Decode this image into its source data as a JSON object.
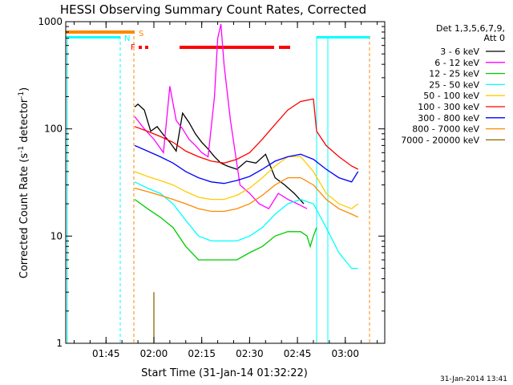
{
  "chart_data": {
    "type": "line",
    "title": "HESSI Observing Summary Count Rates, Corrected",
    "xlabel": "Start Time (31-Jan-14 01:32:22)",
    "ylabel": "Corrected Count Rate (s⁻¹ detector⁻¹)",
    "ylabel_parts": {
      "main": "Corrected Count Rate (s",
      "exp1": "-1",
      "mid": " detector",
      "exp2": "-1",
      "end": ")"
    },
    "x_range": [
      "01:32:22",
      "03:12:22"
    ],
    "y_scale": "log",
    "y_range": [
      1,
      1000
    ],
    "x_ticks": [
      "01:45",
      "02:00",
      "02:15",
      "02:30",
      "02:45",
      "03:00"
    ],
    "y_ticks": [
      "1",
      "10",
      "100",
      "1000"
    ],
    "legend_header": [
      "Det 1,3,5,6,7,9,",
      "Att 0"
    ],
    "legend_position": "right",
    "flag_labels": {
      "S": "S",
      "N": "N",
      "F": "F"
    },
    "footer_date": "31-Jan-2014 13:41",
    "series": [
      {
        "name": "3 - 6 keV",
        "color": "#000000",
        "t": [
          "01:54",
          "01:55",
          "01:57",
          "01:59",
          "02:01",
          "02:03",
          "02:05",
          "02:07",
          "02:09",
          "02:11",
          "02:13",
          "02:15",
          "02:17",
          "02:19",
          "02:21",
          "02:23",
          "02:26",
          "02:29",
          "02:32",
          "02:35",
          "02:38",
          "02:41",
          "02:44",
          "02:47"
        ],
        "values": [
          160,
          170,
          150,
          95,
          105,
          88,
          75,
          62,
          140,
          115,
          90,
          75,
          65,
          55,
          48,
          45,
          42,
          50,
          48,
          58,
          35,
          30,
          25,
          20
        ]
      },
      {
        "name": "6 - 12 keV",
        "color": "#ff00ff",
        "t": [
          "01:54",
          "01:57",
          "02:00",
          "02:03",
          "02:05",
          "02:07",
          "02:09",
          "02:11",
          "02:13",
          "02:15",
          "02:17",
          "02:19",
          "02:20",
          "02:21",
          "02:22",
          "02:24",
          "02:27",
          "02:30",
          "02:33",
          "02:36",
          "02:39",
          "02:42",
          "02:45",
          "02:48"
        ],
        "values": [
          130,
          100,
          80,
          60,
          250,
          120,
          100,
          80,
          70,
          60,
          55,
          200,
          700,
          950,
          400,
          120,
          30,
          25,
          20,
          18,
          25,
          22,
          20,
          18
        ]
      },
      {
        "name": "12 - 25 keV",
        "color": "#00cc00",
        "t": [
          "01:54",
          "01:58",
          "02:02",
          "02:06",
          "02:10",
          "02:14",
          "02:18",
          "02:22",
          "02:26",
          "02:30",
          "02:34",
          "02:38",
          "02:42",
          "02:46",
          "02:48",
          "02:49",
          "02:50",
          "02:51"
        ],
        "values": [
          22,
          18,
          15,
          12,
          8,
          6,
          6,
          6,
          6,
          7,
          8,
          10,
          11,
          11,
          10,
          8,
          10,
          12
        ]
      },
      {
        "name": "25 - 50 keV",
        "color": "#00ffff",
        "t": [
          "01:54",
          "01:58",
          "02:02",
          "02:06",
          "02:10",
          "02:14",
          "02:18",
          "02:22",
          "02:26",
          "02:30",
          "02:34",
          "02:38",
          "02:42",
          "02:46",
          "02:50",
          "02:54",
          "02:58",
          "03:02",
          "03:04"
        ],
        "values": [
          32,
          28,
          25,
          20,
          14,
          10,
          9,
          9,
          9,
          10,
          12,
          16,
          20,
          22,
          20,
          12,
          7,
          5,
          5
        ]
      },
      {
        "name": "50 - 100 keV",
        "color": "#ffcc00",
        "t": [
          "01:54",
          "01:58",
          "02:02",
          "02:06",
          "02:10",
          "02:14",
          "02:18",
          "02:22",
          "02:26",
          "02:30",
          "02:34",
          "02:38",
          "02:42",
          "02:46",
          "02:50",
          "02:54",
          "02:58",
          "03:02",
          "03:04"
        ],
        "values": [
          40,
          36,
          33,
          30,
          26,
          23,
          22,
          22,
          24,
          28,
          35,
          45,
          55,
          55,
          40,
          25,
          20,
          18,
          20
        ]
      },
      {
        "name": "100 - 300 keV",
        "color": "#ff0000",
        "t": [
          "01:54",
          "01:58",
          "02:02",
          "02:06",
          "02:10",
          "02:14",
          "02:18",
          "02:22",
          "02:26",
          "02:30",
          "02:34",
          "02:38",
          "02:42",
          "02:46",
          "02:50",
          "02:51",
          "02:54",
          "02:58",
          "03:02",
          "03:04"
        ],
        "values": [
          105,
          95,
          85,
          75,
          62,
          55,
          50,
          48,
          52,
          60,
          80,
          110,
          150,
          180,
          190,
          95,
          70,
          55,
          45,
          42
        ]
      },
      {
        "name": "300 - 800 keV",
        "color": "#0000ff",
        "t": [
          "01:54",
          "01:58",
          "02:02",
          "02:06",
          "02:10",
          "02:14",
          "02:18",
          "02:22",
          "02:26",
          "02:30",
          "02:34",
          "02:38",
          "02:42",
          "02:46",
          "02:50",
          "02:54",
          "02:58",
          "03:02",
          "03:04"
        ],
        "values": [
          70,
          62,
          55,
          48,
          40,
          35,
          32,
          31,
          33,
          36,
          42,
          50,
          55,
          58,
          52,
          42,
          35,
          32,
          40
        ]
      },
      {
        "name": "800 - 7000 keV",
        "color": "#ff8800",
        "t": [
          "01:54",
          "01:58",
          "02:02",
          "02:06",
          "02:10",
          "02:14",
          "02:18",
          "02:22",
          "02:26",
          "02:30",
          "02:34",
          "02:38",
          "02:42",
          "02:46",
          "02:50",
          "02:54",
          "02:58",
          "03:02",
          "03:04"
        ],
        "values": [
          28,
          26,
          24,
          22,
          20,
          18,
          17,
          17,
          18,
          20,
          24,
          30,
          35,
          35,
          30,
          22,
          18,
          16,
          15
        ]
      },
      {
        "name": "7000 - 20000 keV",
        "color": "#886600",
        "t": [
          "02:00",
          "02:00",
          "02:00"
        ],
        "values": [
          1,
          3,
          1
        ]
      }
    ]
  }
}
